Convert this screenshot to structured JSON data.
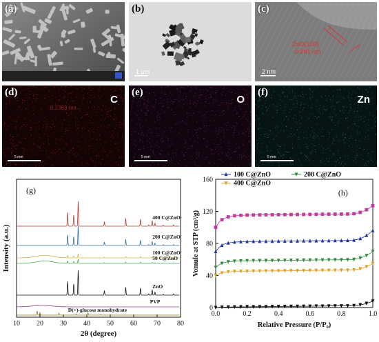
{
  "panels": {
    "a": {
      "label": "(a)"
    },
    "b": {
      "label": "(b)",
      "scale": "1 μm"
    },
    "c": {
      "label": "(c)",
      "scale": "2 nm",
      "annot_line1": "ZnO(100)",
      "annot_line2": "0.281 nm"
    },
    "d": {
      "label": "(d)",
      "element": "C",
      "scale": "5 mm",
      "annot": "0.2363 nm"
    },
    "e": {
      "label": "(e)",
      "element": "O",
      "scale": "5 mm"
    },
    "f": {
      "label": "(f)",
      "element": "Zn",
      "scale": "5 mm"
    }
  },
  "colors": {
    "C": "#c81e1e",
    "O": "#a0307a",
    "Zn": "#2a8a8a"
  },
  "chart_data": [
    {
      "type": "line",
      "panel_label": "(g)",
      "xlabel": "2θ (degree)",
      "ylabel": "Intensity (a.u.)",
      "xlim": [
        10,
        80
      ],
      "xticks": [
        "10",
        "20",
        "30",
        "40",
        "50",
        "60",
        "70",
        "80"
      ],
      "peaks_zno": [
        31.8,
        34.4,
        36.3,
        47.5,
        56.6,
        62.9,
        66.4,
        67.9,
        69.1,
        72.6,
        77.0
      ],
      "series": [
        {
          "name": "400 C@ZnO",
          "color": "#b03a2e",
          "baseline": 0.66,
          "scale": 0.18,
          "kind": "zno"
        },
        {
          "name": "200 C@ZnO",
          "color": "#2e6ea6",
          "baseline": 0.52,
          "scale": 0.14,
          "kind": "zno"
        },
        {
          "name": "100 C@ZnO",
          "color": "#d9b23a",
          "baseline": 0.43,
          "scale": 0.03,
          "kind": "zno_weak"
        },
        {
          "name": "50 C@ZnO",
          "color": "#4caf50",
          "baseline": 0.39,
          "scale": 0.03,
          "kind": "zno_weak"
        },
        {
          "name": "ZnO",
          "color": "#111111",
          "baseline": 0.16,
          "scale": 0.18,
          "kind": "zno"
        },
        {
          "name": "PVP",
          "color": "#8a3a8a",
          "baseline": 0.075,
          "scale": 0.02,
          "kind": "amorphous"
        },
        {
          "name": "D(+)-glucose monohydrate",
          "color": "#8a7a1a",
          "baseline": 0.015,
          "scale": 0.03,
          "kind": "glucose"
        }
      ]
    },
    {
      "type": "line",
      "panel_label": "(h)",
      "xlabel": "Relative Pressure (P/P₀)",
      "ylabel": "Vomule at STP (cm³/g)",
      "xlim": [
        0.0,
        1.0
      ],
      "ylim": [
        0,
        160
      ],
      "xticks": [
        "0.0",
        "0.2",
        "0.4",
        "0.6",
        "0.8",
        "1.0"
      ],
      "yticks": [
        "0",
        "40",
        "80",
        "120",
        "160"
      ],
      "series": [
        {
          "name": "ZnO",
          "color": "#111111",
          "marker": "tri-down",
          "start": 0,
          "plateau": 0.5,
          "end": 8
        },
        {
          "name": "50 C@ZnO",
          "color": "#c23b9e",
          "marker": "square",
          "start": 100,
          "plateau": 115,
          "end": 127
        },
        {
          "name": "100 C@ZnO",
          "color": "#2535a0",
          "marker": "tri-up",
          "start": 70,
          "plateau": 82,
          "end": 96
        },
        {
          "name": "200 C@ZnO",
          "color": "#2f8a3a",
          "marker": "tri-down",
          "start": 50,
          "plateau": 58,
          "end": 70
        },
        {
          "name": "400 C@ZnO",
          "color": "#e0a020",
          "marker": "tri-down",
          "start": 40,
          "plateau": 45,
          "end": 55
        }
      ]
    }
  ]
}
